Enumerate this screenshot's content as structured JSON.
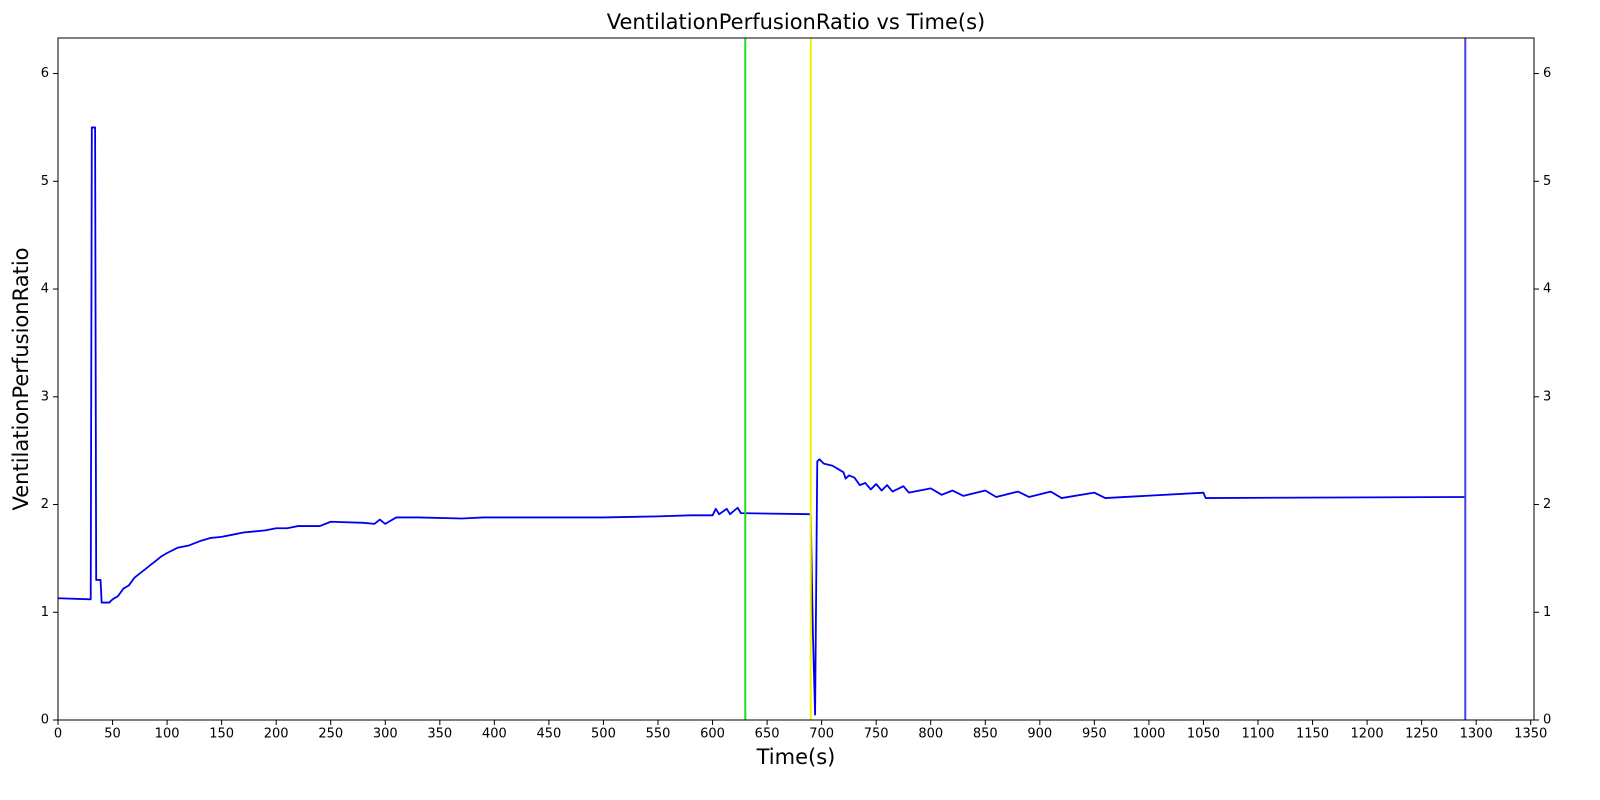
{
  "chart_data": {
    "type": "line",
    "title": "VentilationPerfusionRatio vs Time(s)",
    "xlabel": "Time(s)",
    "ylabel": "VentilationPerfusionRatio",
    "xlim": [
      0,
      1353
    ],
    "ylim": [
      0,
      6.33
    ],
    "y2lim": [
      0,
      6.33
    ],
    "xticks": [
      0,
      50,
      100,
      150,
      200,
      250,
      300,
      350,
      400,
      450,
      500,
      550,
      600,
      650,
      700,
      750,
      800,
      850,
      900,
      950,
      1000,
      1050,
      1100,
      1150,
      1200,
      1250,
      1300,
      1350
    ],
    "yticks": [
      0,
      1,
      2,
      3,
      4,
      5,
      6
    ],
    "y2ticks": [
      0,
      1,
      2,
      3,
      4,
      5,
      6
    ],
    "vlines": [
      {
        "x": 630,
        "color": "#22dd22"
      },
      {
        "x": 690,
        "color": "#f2f200"
      },
      {
        "x": 1290,
        "color": "#4444dd"
      }
    ],
    "series": [
      {
        "color": "#0000ee",
        "x": [
          0,
          30,
          31,
          34,
          35,
          39,
          40,
          47,
          50,
          55,
          60,
          65,
          70,
          75,
          80,
          85,
          90,
          95,
          100,
          110,
          120,
          130,
          140,
          150,
          160,
          170,
          180,
          190,
          200,
          210,
          220,
          240,
          250,
          280,
          290,
          295,
          300,
          310,
          330,
          370,
          390,
          500,
          550,
          580,
          600,
          603,
          606,
          613,
          616,
          623,
          626,
          690,
          692,
          694,
          696,
          698,
          702,
          710,
          720,
          722,
          725,
          730,
          735,
          740,
          745,
          750,
          755,
          760,
          765,
          775,
          780,
          800,
          810,
          820,
          830,
          850,
          860,
          880,
          890,
          910,
          920,
          950,
          960,
          1050,
          1052,
          1290
        ],
        "values": [
          1.13,
          1.12,
          5.5,
          5.5,
          1.3,
          1.3,
          1.09,
          1.09,
          1.12,
          1.15,
          1.22,
          1.25,
          1.32,
          1.36,
          1.4,
          1.44,
          1.48,
          1.52,
          1.55,
          1.6,
          1.62,
          1.66,
          1.69,
          1.7,
          1.72,
          1.74,
          1.75,
          1.76,
          1.78,
          1.78,
          1.8,
          1.8,
          1.84,
          1.83,
          1.82,
          1.86,
          1.82,
          1.88,
          1.88,
          1.87,
          1.88,
          1.88,
          1.89,
          1.9,
          1.9,
          1.96,
          1.91,
          1.96,
          1.91,
          1.97,
          1.92,
          1.91,
          0.8,
          0.05,
          2.4,
          2.42,
          2.38,
          2.36,
          2.3,
          2.24,
          2.27,
          2.25,
          2.18,
          2.2,
          2.14,
          2.19,
          2.13,
          2.18,
          2.12,
          2.17,
          2.11,
          2.15,
          2.09,
          2.13,
          2.08,
          2.13,
          2.07,
          2.12,
          2.07,
          2.12,
          2.06,
          2.11,
          2.06,
          2.11,
          2.06,
          2.07
        ]
      }
    ]
  }
}
